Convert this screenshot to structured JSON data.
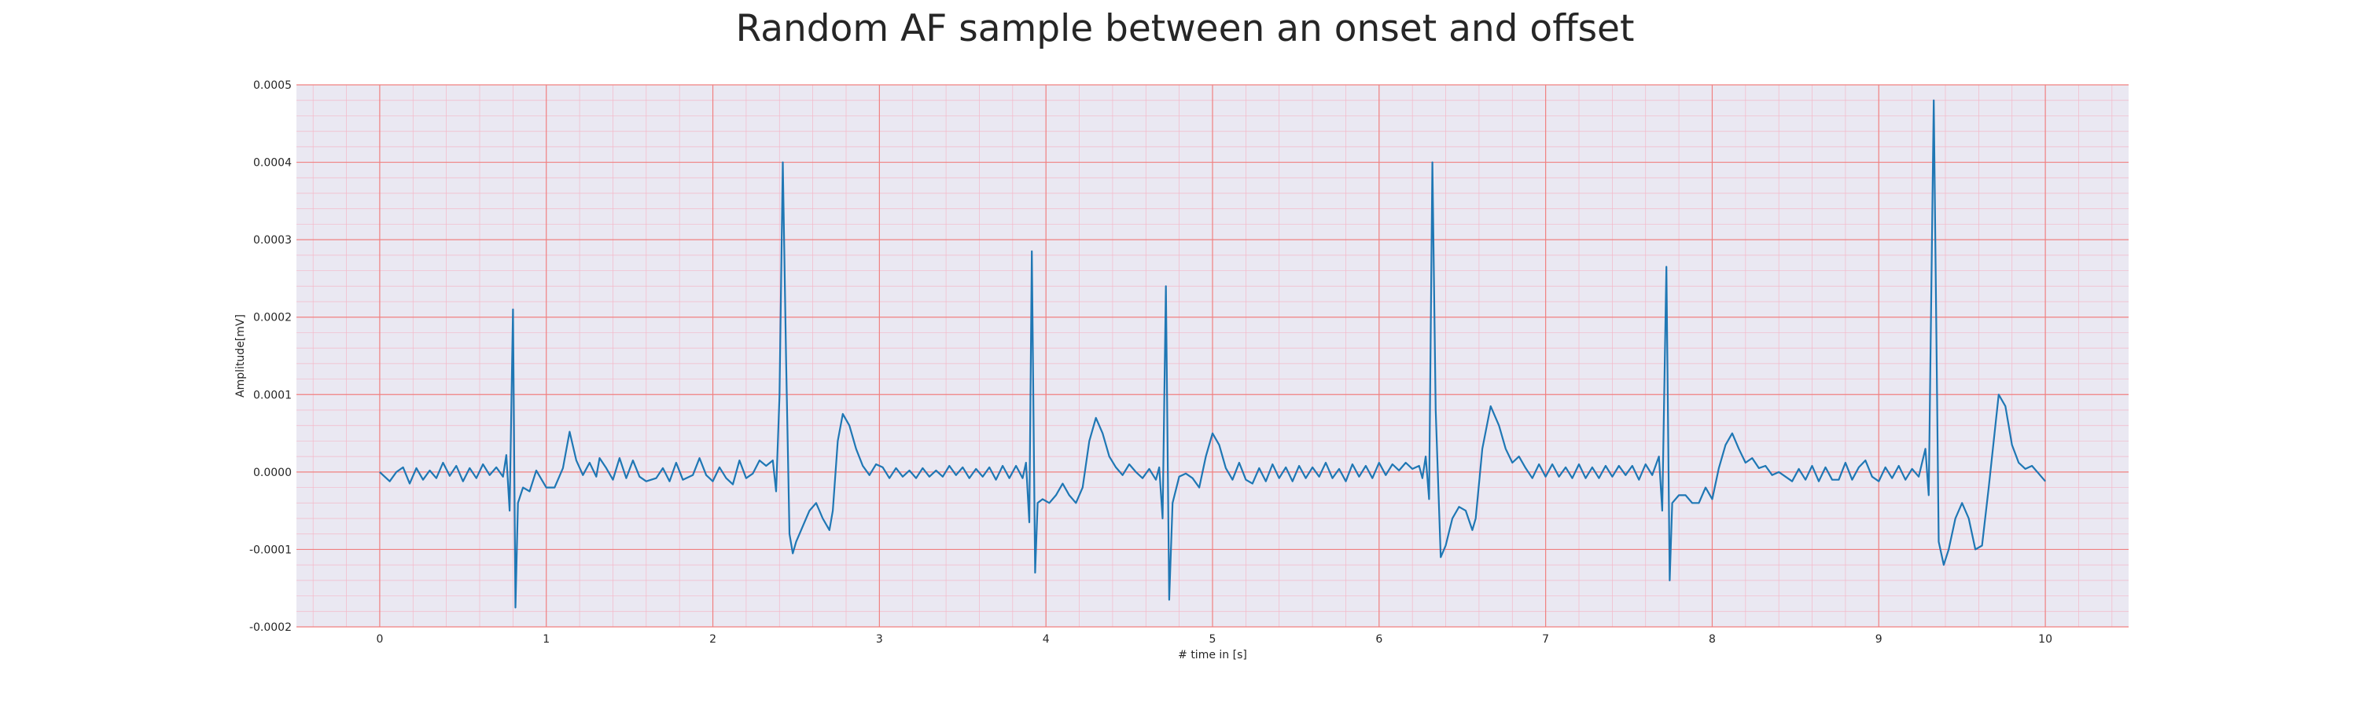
{
  "chart_data": {
    "type": "line",
    "title": "Random AF sample between an onset and offset",
    "xlabel": "# time in [s]",
    "ylabel": "Amplitude[mV]",
    "xlim": [
      -0.5,
      10.5
    ],
    "ylim": [
      -0.0002,
      0.0005
    ],
    "x_ticks": [
      0,
      1,
      2,
      3,
      4,
      5,
      6,
      7,
      8,
      9,
      10
    ],
    "x_tick_labels": [
      "0",
      "1",
      "2",
      "3",
      "4",
      "5",
      "6",
      "7",
      "8",
      "9",
      "10"
    ],
    "y_ticks": [
      -0.0002,
      -0.0001,
      0.0,
      0.0001,
      0.0002,
      0.0003,
      0.0004,
      0.0005
    ],
    "y_tick_labels": [
      "-0.0002",
      "-0.0001",
      "0.0000",
      "0.0001",
      "0.0002",
      "0.0003",
      "0.0004",
      "0.0005"
    ],
    "grid": "on",
    "minor_grid": "on",
    "colors": {
      "line": "#1f77b4",
      "plot_background": "#eae8f2",
      "major_grid": "#f08080",
      "minor_grid": "#f4b8c8"
    },
    "series": [
      {
        "points": [
          [
            0.0,
            0.0
          ],
          [
            0.06,
            -1.2e-05
          ],
          [
            0.1,
            0.0
          ],
          [
            0.14,
            6e-06
          ],
          [
            0.18,
            -1.5e-05
          ],
          [
            0.22,
            5e-06
          ],
          [
            0.26,
            -1e-05
          ],
          [
            0.3,
            2e-06
          ],
          [
            0.34,
            -8e-06
          ],
          [
            0.38,
            1.2e-05
          ],
          [
            0.42,
            -5e-06
          ],
          [
            0.46,
            8e-06
          ],
          [
            0.5,
            -1.2e-05
          ],
          [
            0.54,
            5e-06
          ],
          [
            0.58,
            -8e-06
          ],
          [
            0.62,
            1e-05
          ],
          [
            0.66,
            -4e-06
          ],
          [
            0.7,
            6e-06
          ],
          [
            0.74,
            -6e-06
          ],
          [
            0.76,
            2.2e-05
          ],
          [
            0.78,
            -5e-05
          ],
          [
            0.8,
            0.00021
          ],
          [
            0.815,
            -0.000175
          ],
          [
            0.83,
            -4e-05
          ],
          [
            0.86,
            -2e-05
          ],
          [
            0.9,
            -2.5e-05
          ],
          [
            0.94,
            2e-06
          ],
          [
            1.0,
            -2e-05
          ],
          [
            1.05,
            -2e-05
          ],
          [
            1.1,
            5e-06
          ],
          [
            1.14,
            5.2e-05
          ],
          [
            1.18,
            1.5e-05
          ],
          [
            1.22,
            -4e-06
          ],
          [
            1.26,
            1.2e-05
          ],
          [
            1.3,
            -6e-06
          ],
          [
            1.32,
            1.8e-05
          ],
          [
            1.36,
            5e-06
          ],
          [
            1.4,
            -1e-05
          ],
          [
            1.44,
            1.8e-05
          ],
          [
            1.48,
            -8e-06
          ],
          [
            1.52,
            1.5e-05
          ],
          [
            1.56,
            -6e-06
          ],
          [
            1.6,
            -1.2e-05
          ],
          [
            1.66,
            -8e-06
          ],
          [
            1.7,
            5e-06
          ],
          [
            1.74,
            -1.2e-05
          ],
          [
            1.78,
            1.2e-05
          ],
          [
            1.82,
            -1e-05
          ],
          [
            1.88,
            -4e-06
          ],
          [
            1.92,
            1.8e-05
          ],
          [
            1.96,
            -4e-06
          ],
          [
            2.0,
            -1.2e-05
          ],
          [
            2.04,
            6e-06
          ],
          [
            2.08,
            -8e-06
          ],
          [
            2.12,
            -1.6e-05
          ],
          [
            2.16,
            1.5e-05
          ],
          [
            2.2,
            -8e-06
          ],
          [
            2.24,
            -2e-06
          ],
          [
            2.28,
            1.5e-05
          ],
          [
            2.32,
            8e-06
          ],
          [
            2.36,
            1.5e-05
          ],
          [
            2.38,
            -2.5e-05
          ],
          [
            2.4,
            9.8e-05
          ],
          [
            2.42,
            0.0004
          ],
          [
            2.44,
            0.000145
          ],
          [
            2.46,
            -8e-05
          ],
          [
            2.48,
            -0.000105
          ],
          [
            2.5,
            -9e-05
          ],
          [
            2.54,
            -7e-05
          ],
          [
            2.58,
            -5e-05
          ],
          [
            2.62,
            -4e-05
          ],
          [
            2.66,
            -6e-05
          ],
          [
            2.7,
            -7.5e-05
          ],
          [
            2.72,
            -5e-05
          ],
          [
            2.75,
            4e-05
          ],
          [
            2.78,
            7.5e-05
          ],
          [
            2.82,
            6e-05
          ],
          [
            2.86,
            3e-05
          ],
          [
            2.9,
            8e-06
          ],
          [
            2.94,
            -4e-06
          ],
          [
            2.98,
            1e-05
          ],
          [
            3.02,
            6e-06
          ],
          [
            3.06,
            -8e-06
          ],
          [
            3.1,
            5e-06
          ],
          [
            3.14,
            -6e-06
          ],
          [
            3.18,
            2e-06
          ],
          [
            3.22,
            -8e-06
          ],
          [
            3.26,
            5e-06
          ],
          [
            3.3,
            -6e-06
          ],
          [
            3.34,
            2e-06
          ],
          [
            3.38,
            -6e-06
          ],
          [
            3.42,
            8e-06
          ],
          [
            3.46,
            -4e-06
          ],
          [
            3.5,
            6e-06
          ],
          [
            3.54,
            -8e-06
          ],
          [
            3.58,
            4e-06
          ],
          [
            3.62,
            -6e-06
          ],
          [
            3.66,
            6e-06
          ],
          [
            3.7,
            -1e-05
          ],
          [
            3.74,
            8e-06
          ],
          [
            3.78,
            -8e-06
          ],
          [
            3.82,
            8e-06
          ],
          [
            3.86,
            -8e-06
          ],
          [
            3.88,
            1.2e-05
          ],
          [
            3.9,
            -6.5e-05
          ],
          [
            3.915,
            0.000285
          ],
          [
            3.935,
            -0.00013
          ],
          [
            3.95,
            -4e-05
          ],
          [
            3.98,
            -3.5e-05
          ],
          [
            4.02,
            -4e-05
          ],
          [
            4.06,
            -3e-05
          ],
          [
            4.1,
            -1.5e-05
          ],
          [
            4.14,
            -3e-05
          ],
          [
            4.18,
            -4e-05
          ],
          [
            4.22,
            -2e-05
          ],
          [
            4.26,
            4e-05
          ],
          [
            4.3,
            7e-05
          ],
          [
            4.34,
            5e-05
          ],
          [
            4.38,
            2e-05
          ],
          [
            4.42,
            6e-06
          ],
          [
            4.46,
            -4e-06
          ],
          [
            4.5,
            1e-05
          ],
          [
            4.54,
            0.0
          ],
          [
            4.58,
            -8e-06
          ],
          [
            4.62,
            4e-06
          ],
          [
            4.66,
            -1e-05
          ],
          [
            4.68,
            6e-06
          ],
          [
            4.7,
            -6e-05
          ],
          [
            4.72,
            0.00024
          ],
          [
            4.74,
            -0.000165
          ],
          [
            4.76,
            -4e-05
          ],
          [
            4.8,
            -6e-06
          ],
          [
            4.84,
            -2e-06
          ],
          [
            4.88,
            -8e-06
          ],
          [
            4.92,
            -2e-05
          ],
          [
            4.96,
            2e-05
          ],
          [
            5.0,
            5e-05
          ],
          [
            5.04,
            3.5e-05
          ],
          [
            5.08,
            5e-06
          ],
          [
            5.12,
            -1e-05
          ],
          [
            5.16,
            1.2e-05
          ],
          [
            5.2,
            -1e-05
          ],
          [
            5.24,
            -1.5e-05
          ],
          [
            5.28,
            5e-06
          ],
          [
            5.32,
            -1.2e-05
          ],
          [
            5.36,
            1e-05
          ],
          [
            5.4,
            -8e-06
          ],
          [
            5.44,
            6e-06
          ],
          [
            5.48,
            -1.2e-05
          ],
          [
            5.52,
            8e-06
          ],
          [
            5.56,
            -8e-06
          ],
          [
            5.6,
            6e-06
          ],
          [
            5.64,
            -6e-06
          ],
          [
            5.68,
            1.2e-05
          ],
          [
            5.72,
            -8e-06
          ],
          [
            5.76,
            4e-06
          ],
          [
            5.8,
            -1.2e-05
          ],
          [
            5.84,
            1e-05
          ],
          [
            5.88,
            -6e-06
          ],
          [
            5.92,
            8e-06
          ],
          [
            5.96,
            -8e-06
          ],
          [
            6.0,
            1.2e-05
          ],
          [
            6.04,
            -4e-06
          ],
          [
            6.08,
            1e-05
          ],
          [
            6.12,
            2e-06
          ],
          [
            6.16,
            1.2e-05
          ],
          [
            6.2,
            4e-06
          ],
          [
            6.24,
            8e-06
          ],
          [
            6.26,
            -8e-06
          ],
          [
            6.28,
            2e-05
          ],
          [
            6.3,
            -3.5e-05
          ],
          [
            6.32,
            0.0004
          ],
          [
            6.34,
            8e-05
          ],
          [
            6.37,
            -0.00011
          ],
          [
            6.4,
            -9.5e-05
          ],
          [
            6.44,
            -6e-05
          ],
          [
            6.48,
            -4.5e-05
          ],
          [
            6.52,
            -5e-05
          ],
          [
            6.56,
            -7.5e-05
          ],
          [
            6.58,
            -6e-05
          ],
          [
            6.62,
            3e-05
          ],
          [
            6.67,
            8.5e-05
          ],
          [
            6.72,
            6e-05
          ],
          [
            6.76,
            3e-05
          ],
          [
            6.8,
            1.2e-05
          ],
          [
            6.84,
            2e-05
          ],
          [
            6.88,
            5e-06
          ],
          [
            6.92,
            -8e-06
          ],
          [
            6.96,
            1e-05
          ],
          [
            7.0,
            -6e-06
          ],
          [
            7.04,
            1e-05
          ],
          [
            7.08,
            -6e-06
          ],
          [
            7.12,
            6e-06
          ],
          [
            7.16,
            -8e-06
          ],
          [
            7.2,
            1e-05
          ],
          [
            7.24,
            -8e-06
          ],
          [
            7.28,
            6e-06
          ],
          [
            7.32,
            -8e-06
          ],
          [
            7.36,
            8e-06
          ],
          [
            7.4,
            -6e-06
          ],
          [
            7.44,
            8e-06
          ],
          [
            7.48,
            -4e-06
          ],
          [
            7.52,
            8e-06
          ],
          [
            7.56,
            -1e-05
          ],
          [
            7.6,
            1e-05
          ],
          [
            7.64,
            -4e-06
          ],
          [
            7.68,
            2e-05
          ],
          [
            7.7,
            -5e-05
          ],
          [
            7.725,
            0.000265
          ],
          [
            7.745,
            -0.00014
          ],
          [
            7.76,
            -4e-05
          ],
          [
            7.8,
            -3e-05
          ],
          [
            7.84,
            -3e-05
          ],
          [
            7.88,
            -4e-05
          ],
          [
            7.92,
            -4e-05
          ],
          [
            7.96,
            -2e-05
          ],
          [
            8.0,
            -3.5e-05
          ],
          [
            8.04,
            5e-06
          ],
          [
            8.08,
            3.5e-05
          ],
          [
            8.12,
            5e-05
          ],
          [
            8.16,
            3e-05
          ],
          [
            8.2,
            1.2e-05
          ],
          [
            8.24,
            1.8e-05
          ],
          [
            8.28,
            5e-06
          ],
          [
            8.32,
            8e-06
          ],
          [
            8.36,
            -4e-06
          ],
          [
            8.4,
            0.0
          ],
          [
            8.44,
            -6e-06
          ],
          [
            8.48,
            -1.2e-05
          ],
          [
            8.52,
            4e-06
          ],
          [
            8.56,
            -1e-05
          ],
          [
            8.6,
            8e-06
          ],
          [
            8.64,
            -1.2e-05
          ],
          [
            8.68,
            6e-06
          ],
          [
            8.72,
            -1e-05
          ],
          [
            8.76,
            -1e-05
          ],
          [
            8.8,
            1.2e-05
          ],
          [
            8.84,
            -1e-05
          ],
          [
            8.88,
            6e-06
          ],
          [
            8.92,
            1.5e-05
          ],
          [
            8.96,
            -6e-06
          ],
          [
            9.0,
            -1.2e-05
          ],
          [
            9.04,
            6e-06
          ],
          [
            9.08,
            -8e-06
          ],
          [
            9.12,
            8e-06
          ],
          [
            9.16,
            -1e-05
          ],
          [
            9.2,
            4e-06
          ],
          [
            9.24,
            -6e-06
          ],
          [
            9.28,
            3e-05
          ],
          [
            9.3,
            -3e-05
          ],
          [
            9.33,
            0.00048
          ],
          [
            9.36,
            -9e-05
          ],
          [
            9.39,
            -0.00012
          ],
          [
            9.42,
            -0.0001
          ],
          [
            9.46,
            -6e-05
          ],
          [
            9.5,
            -4e-05
          ],
          [
            9.54,
            -6e-05
          ],
          [
            9.58,
            -0.0001
          ],
          [
            9.62,
            -9.5e-05
          ],
          [
            9.66,
            -2e-05
          ],
          [
            9.72,
            0.0001
          ],
          [
            9.76,
            8.5e-05
          ],
          [
            9.8,
            3.5e-05
          ],
          [
            9.84,
            1.2e-05
          ],
          [
            9.88,
            4e-06
          ],
          [
            9.92,
            8e-06
          ],
          [
            9.96,
            -2e-06
          ],
          [
            10.0,
            -1.2e-05
          ]
        ]
      }
    ]
  }
}
